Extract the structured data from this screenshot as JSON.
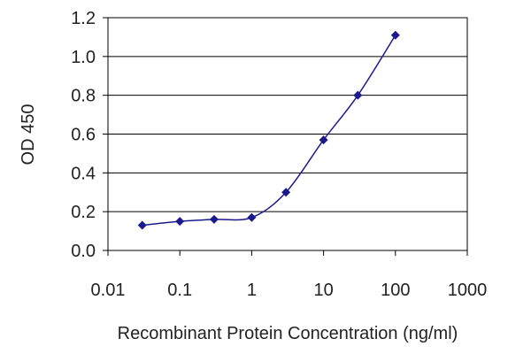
{
  "chart_data": {
    "type": "scatter",
    "title": "",
    "xlabel": "Recombinant Protein Concentration (ng/ml)",
    "ylabel": "OD 450",
    "x_scale": "log",
    "xlim": [
      0.01,
      1000
    ],
    "ylim": [
      0,
      1.2
    ],
    "x_ticks": [
      0.01,
      0.1,
      1,
      10,
      100,
      1000
    ],
    "x_tick_labels": [
      "0.01",
      "0.1",
      "1",
      "10",
      "100",
      "1000"
    ],
    "y_ticks": [
      0,
      0.2,
      0.4,
      0.6,
      0.8,
      1.0,
      1.2
    ],
    "y_tick_labels": [
      "0.0",
      "0.2",
      "0.4",
      "0.6",
      "0.8",
      "1.0",
      "1.2"
    ],
    "grid": "horizontal",
    "legend": "none",
    "series": [
      {
        "x": [
          0.03,
          0.1,
          0.3,
          1,
          3,
          10,
          30,
          100
        ],
        "y": [
          0.13,
          0.15,
          0.16,
          0.17,
          0.3,
          0.57,
          0.8,
          1.11
        ],
        "color": "#1a1a8c",
        "marker": "diamond",
        "line": "smooth"
      }
    ]
  }
}
